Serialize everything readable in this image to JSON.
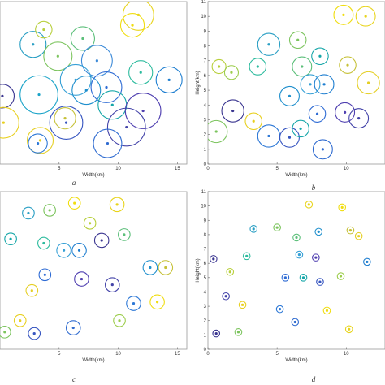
{
  "chart_data": [
    {
      "type": "scatter",
      "caption": "a",
      "xlabel": "Width(km)",
      "ylabel": "",
      "xlim": [
        0,
        15.8
      ],
      "ylim": [
        0,
        11
      ],
      "xticks": [
        5,
        10,
        15
      ],
      "yticks": [],
      "grid": false,
      "points": [
        {
          "x": 11.7,
          "y": 10.1,
          "r": 1.3,
          "c": "#e8d41c"
        },
        {
          "x": 11.2,
          "y": 9.4,
          "r": 1.0,
          "c": "#f0dd10"
        },
        {
          "x": 2.8,
          "y": 8.1,
          "r": 1.1,
          "c": "#2a9fc4"
        },
        {
          "x": 4.9,
          "y": 7.3,
          "r": 1.2,
          "c": "#7cc45e"
        },
        {
          "x": 3.7,
          "y": 9.1,
          "r": 0.7,
          "c": "#b8cf3c"
        },
        {
          "x": 7.0,
          "y": 8.5,
          "r": 1.0,
          "c": "#5cbf7a"
        },
        {
          "x": 8.2,
          "y": 7.0,
          "r": 1.3,
          "c": "#3c8ad8"
        },
        {
          "x": 11.9,
          "y": 6.2,
          "r": 1.0,
          "c": "#2dbb9e"
        },
        {
          "x": 14.3,
          "y": 5.7,
          "r": 1.1,
          "c": "#1e7ed0"
        },
        {
          "x": 3.3,
          "y": 4.7,
          "r": 1.6,
          "c": "#1aa3c8"
        },
        {
          "x": 0.2,
          "y": 4.6,
          "r": 1.0,
          "c": "#3a3590"
        },
        {
          "x": 6.4,
          "y": 5.7,
          "r": 1.3,
          "c": "#36a0d6"
        },
        {
          "x": 7.3,
          "y": 5.0,
          "r": 1.2,
          "c": "#1f8fcd"
        },
        {
          "x": 9.0,
          "y": 5.2,
          "r": 1.3,
          "c": "#2e6bd4"
        },
        {
          "x": 9.5,
          "y": 4.0,
          "r": 1.2,
          "c": "#15a6a8"
        },
        {
          "x": 12.1,
          "y": 3.6,
          "r": 1.5,
          "c": "#4f3fb0"
        },
        {
          "x": 0.3,
          "y": 2.8,
          "r": 1.3,
          "c": "#e8d020"
        },
        {
          "x": 3.4,
          "y": 1.6,
          "r": 1.1,
          "c": "#e5cf25"
        },
        {
          "x": 3.2,
          "y": 1.4,
          "r": 0.8,
          "c": "#2d78d6"
        },
        {
          "x": 5.6,
          "y": 2.8,
          "r": 1.4,
          "c": "#3655c0"
        },
        {
          "x": 10.7,
          "y": 2.5,
          "r": 1.6,
          "c": "#4242a8"
        },
        {
          "x": 9.1,
          "y": 1.4,
          "r": 1.2,
          "c": "#2f6bd0"
        },
        {
          "x": 5.5,
          "y": 3.1,
          "r": 0.9,
          "c": "#c6c138"
        }
      ]
    },
    {
      "type": "scatter",
      "caption": "b",
      "xlabel": "Width(km)",
      "ylabel": "Height(km)",
      "xlim": [
        0,
        12.8
      ],
      "ylim": [
        0,
        11
      ],
      "xticks": [
        0,
        5,
        10
      ],
      "yticks": [
        0,
        1,
        2,
        3,
        4,
        5,
        6,
        7,
        8,
        9,
        10,
        11
      ],
      "grid": false,
      "points": [
        {
          "x": 9.8,
          "y": 10.1,
          "r": 0.7,
          "c": "#f0dd10"
        },
        {
          "x": 11.4,
          "y": 10.0,
          "r": 0.7,
          "c": "#e8d41c"
        },
        {
          "x": 4.4,
          "y": 8.1,
          "r": 0.8,
          "c": "#2a9fc4"
        },
        {
          "x": 6.5,
          "y": 8.4,
          "r": 0.6,
          "c": "#7cc45e"
        },
        {
          "x": 0.8,
          "y": 6.6,
          "r": 0.5,
          "c": "#b8cf3c"
        },
        {
          "x": 3.6,
          "y": 6.6,
          "r": 0.6,
          "c": "#2dbb9e"
        },
        {
          "x": 6.8,
          "y": 6.6,
          "r": 0.7,
          "c": "#5cbf7a"
        },
        {
          "x": 8.1,
          "y": 7.3,
          "r": 0.6,
          "c": "#15a6a8"
        },
        {
          "x": 10.1,
          "y": 6.7,
          "r": 0.6,
          "c": "#c6c138"
        },
        {
          "x": 8.4,
          "y": 5.4,
          "r": 0.7,
          "c": "#1e7ed0"
        },
        {
          "x": 7.4,
          "y": 5.4,
          "r": 0.7,
          "c": "#36a0d6"
        },
        {
          "x": 11.6,
          "y": 5.5,
          "r": 0.8,
          "c": "#e5cf25"
        },
        {
          "x": 1.7,
          "y": 6.2,
          "r": 0.5,
          "c": "#9ccd4c"
        },
        {
          "x": 5.9,
          "y": 4.6,
          "r": 0.7,
          "c": "#1f8fcd"
        },
        {
          "x": 1.8,
          "y": 3.6,
          "r": 0.8,
          "c": "#3a3590"
        },
        {
          "x": 7.9,
          "y": 3.4,
          "r": 0.6,
          "c": "#2e6bd4"
        },
        {
          "x": 9.9,
          "y": 3.5,
          "r": 0.7,
          "c": "#4f3fb0"
        },
        {
          "x": 10.9,
          "y": 3.1,
          "r": 0.7,
          "c": "#4242a8"
        },
        {
          "x": 4.4,
          "y": 1.9,
          "r": 0.8,
          "c": "#2d78d6"
        },
        {
          "x": 5.9,
          "y": 1.8,
          "r": 0.7,
          "c": "#3655c0"
        },
        {
          "x": 8.3,
          "y": 1.0,
          "r": 0.7,
          "c": "#2f6bd0"
        },
        {
          "x": 0.6,
          "y": 2.2,
          "r": 0.8,
          "c": "#7cc45e"
        },
        {
          "x": 3.3,
          "y": 2.9,
          "r": 0.6,
          "c": "#e8d020"
        },
        {
          "x": 6.7,
          "y": 2.4,
          "r": 0.6,
          "c": "#15a6a8"
        }
      ]
    },
    {
      "type": "scatter",
      "caption": "c",
      "xlabel": "Width(km)",
      "ylabel": "",
      "xlim": [
        0,
        15.8
      ],
      "ylim": [
        0,
        11
      ],
      "xticks": [
        5,
        10,
        15
      ],
      "yticks": [],
      "grid": false,
      "points": [
        {
          "x": 9.9,
          "y": 10.1,
          "r": 0.6,
          "c": "#e8d41c"
        },
        {
          "x": 6.3,
          "y": 10.2,
          "r": 0.5,
          "c": "#f0dd10"
        },
        {
          "x": 2.4,
          "y": 9.5,
          "r": 0.5,
          "c": "#2a9fc4"
        },
        {
          "x": 4.2,
          "y": 9.7,
          "r": 0.5,
          "c": "#7cc45e"
        },
        {
          "x": 7.6,
          "y": 8.8,
          "r": 0.5,
          "c": "#b8cf3c"
        },
        {
          "x": 10.5,
          "y": 8.0,
          "r": 0.5,
          "c": "#5cbf7a"
        },
        {
          "x": 8.6,
          "y": 7.6,
          "r": 0.6,
          "c": "#3a3590"
        },
        {
          "x": 3.7,
          "y": 7.4,
          "r": 0.5,
          "c": "#2dbb9e"
        },
        {
          "x": 5.4,
          "y": 6.9,
          "r": 0.6,
          "c": "#36a0d6"
        },
        {
          "x": 6.7,
          "y": 6.9,
          "r": 0.6,
          "c": "#1e7ed0"
        },
        {
          "x": 0.9,
          "y": 7.7,
          "r": 0.5,
          "c": "#15a6a8"
        },
        {
          "x": 12.7,
          "y": 5.7,
          "r": 0.6,
          "c": "#1f8fcd"
        },
        {
          "x": 14.0,
          "y": 5.7,
          "r": 0.6,
          "c": "#c6c138"
        },
        {
          "x": 3.8,
          "y": 5.2,
          "r": 0.5,
          "c": "#2e6bd4"
        },
        {
          "x": 6.9,
          "y": 4.9,
          "r": 0.6,
          "c": "#4f3fb0"
        },
        {
          "x": 9.5,
          "y": 4.5,
          "r": 0.6,
          "c": "#4242a8"
        },
        {
          "x": 2.7,
          "y": 4.1,
          "r": 0.5,
          "c": "#e5cf25"
        },
        {
          "x": 11.3,
          "y": 3.2,
          "r": 0.6,
          "c": "#2d78d6"
        },
        {
          "x": 1.7,
          "y": 2.0,
          "r": 0.5,
          "c": "#e8d020"
        },
        {
          "x": 2.9,
          "y": 1.1,
          "r": 0.5,
          "c": "#3655c0"
        },
        {
          "x": 6.2,
          "y": 1.5,
          "r": 0.6,
          "c": "#2f6bd0"
        },
        {
          "x": 10.1,
          "y": 2.0,
          "r": 0.5,
          "c": "#9ccd4c"
        },
        {
          "x": 13.3,
          "y": 3.3,
          "r": 0.6,
          "c": "#f0dd10"
        },
        {
          "x": 0.4,
          "y": 1.2,
          "r": 0.5,
          "c": "#7cc45e"
        }
      ]
    },
    {
      "type": "scatter",
      "caption": "d",
      "xlabel": "Width(km)",
      "ylabel": "Height(km)",
      "xlim": [
        0,
        12.8
      ],
      "ylim": [
        0,
        11
      ],
      "xticks": [
        0,
        5,
        10
      ],
      "yticks": [
        0,
        1,
        2,
        3,
        4,
        5,
        6,
        7,
        8,
        9,
        10,
        11
      ],
      "grid": false,
      "points": [
        {
          "x": 7.3,
          "y": 10.1,
          "r": 0.25,
          "c": "#e8d41c"
        },
        {
          "x": 9.7,
          "y": 9.9,
          "r": 0.25,
          "c": "#f0dd10"
        },
        {
          "x": 3.3,
          "y": 8.4,
          "r": 0.25,
          "c": "#2a9fc4"
        },
        {
          "x": 5.0,
          "y": 8.5,
          "r": 0.25,
          "c": "#7cc45e"
        },
        {
          "x": 6.4,
          "y": 7.8,
          "r": 0.25,
          "c": "#5cbf7a"
        },
        {
          "x": 8.0,
          "y": 8.2,
          "r": 0.25,
          "c": "#1f8fcd"
        },
        {
          "x": 10.3,
          "y": 8.3,
          "r": 0.25,
          "c": "#c6c138"
        },
        {
          "x": 10.9,
          "y": 7.9,
          "r": 0.25,
          "c": "#e5cf25"
        },
        {
          "x": 0.4,
          "y": 6.3,
          "r": 0.25,
          "c": "#3a3590"
        },
        {
          "x": 2.8,
          "y": 6.5,
          "r": 0.25,
          "c": "#2dbb9e"
        },
        {
          "x": 6.6,
          "y": 6.6,
          "r": 0.25,
          "c": "#36a0d6"
        },
        {
          "x": 7.8,
          "y": 6.4,
          "r": 0.25,
          "c": "#4f3fb0"
        },
        {
          "x": 11.5,
          "y": 6.1,
          "r": 0.25,
          "c": "#1e7ed0"
        },
        {
          "x": 1.6,
          "y": 5.4,
          "r": 0.25,
          "c": "#b8cf3c"
        },
        {
          "x": 5.6,
          "y": 5.0,
          "r": 0.25,
          "c": "#2e6bd4"
        },
        {
          "x": 6.9,
          "y": 5.0,
          "r": 0.25,
          "c": "#15a6a8"
        },
        {
          "x": 8.1,
          "y": 4.7,
          "r": 0.25,
          "c": "#3655c0"
        },
        {
          "x": 9.6,
          "y": 5.1,
          "r": 0.25,
          "c": "#9ccd4c"
        },
        {
          "x": 1.3,
          "y": 3.7,
          "r": 0.25,
          "c": "#4242a8"
        },
        {
          "x": 2.5,
          "y": 3.1,
          "r": 0.25,
          "c": "#e8d020"
        },
        {
          "x": 5.2,
          "y": 2.8,
          "r": 0.25,
          "c": "#2d78d6"
        },
        {
          "x": 6.3,
          "y": 1.9,
          "r": 0.25,
          "c": "#2f6bd0"
        },
        {
          "x": 8.6,
          "y": 2.7,
          "r": 0.25,
          "c": "#f0dd10"
        },
        {
          "x": 0.6,
          "y": 1.1,
          "r": 0.25,
          "c": "#3a3590"
        },
        {
          "x": 2.2,
          "y": 1.2,
          "r": 0.25,
          "c": "#7cc45e"
        },
        {
          "x": 10.2,
          "y": 1.4,
          "r": 0.25,
          "c": "#e8d41c"
        }
      ]
    }
  ]
}
